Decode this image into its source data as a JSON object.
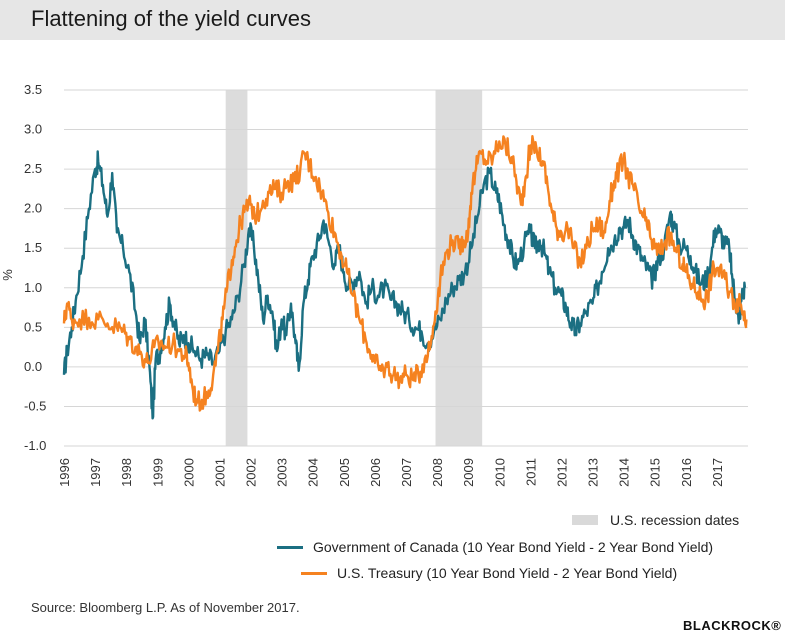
{
  "header": {
    "title": "Flattening of the yield curves"
  },
  "chart_data": {
    "type": "line",
    "ylabel": "%",
    "ylim": [
      -1.0,
      3.5
    ],
    "yticks": [
      "3.5",
      "3.0",
      "2.5",
      "2.0",
      "1.5",
      "1.0",
      "0.5",
      "0.0",
      "-0.5",
      "-1.0"
    ],
    "xlim": [
      1996.0,
      2018.0
    ],
    "xticks": [
      "1996",
      "1997",
      "1998",
      "1999",
      "2000",
      "2001",
      "2002",
      "2003",
      "2004",
      "2005",
      "2006",
      "2007",
      "2008",
      "2009",
      "2010",
      "2011",
      "2012",
      "2013",
      "2014",
      "2015",
      "2016",
      "2017"
    ],
    "grid": true,
    "recessions": [
      {
        "start": 2001.2,
        "end": 2001.9
      },
      {
        "start": 2007.95,
        "end": 2009.45
      }
    ],
    "series": [
      {
        "name": "Government of Canada (10 Year Bond Yield - 2 Year Bond Yield)",
        "color": "#1b6f82",
        "points": [
          [
            1996.0,
            -0.1
          ],
          [
            1996.1,
            0.2
          ],
          [
            1996.25,
            0.5
          ],
          [
            1996.4,
            0.9
          ],
          [
            1996.6,
            1.4
          ],
          [
            1996.8,
            2.0
          ],
          [
            1997.0,
            2.5
          ],
          [
            1997.1,
            2.6
          ],
          [
            1997.25,
            2.3
          ],
          [
            1997.4,
            1.9
          ],
          [
            1997.55,
            2.45
          ],
          [
            1997.7,
            1.7
          ],
          [
            1997.9,
            1.5
          ],
          [
            1998.1,
            1.2
          ],
          [
            1998.3,
            0.7
          ],
          [
            1998.45,
            0.3
          ],
          [
            1998.6,
            0.6
          ],
          [
            1998.75,
            0.0
          ],
          [
            1998.85,
            -0.65
          ],
          [
            1998.95,
            0.1
          ],
          [
            1999.1,
            0.2
          ],
          [
            1999.25,
            0.5
          ],
          [
            1999.4,
            0.8
          ],
          [
            1999.55,
            0.55
          ],
          [
            1999.7,
            0.3
          ],
          [
            1999.85,
            0.4
          ],
          [
            2000.0,
            0.3
          ],
          [
            2000.2,
            0.2
          ],
          [
            2000.4,
            0.1
          ],
          [
            2000.6,
            0.15
          ],
          [
            2000.8,
            0.05
          ],
          [
            2001.0,
            0.2
          ],
          [
            2001.2,
            0.45
          ],
          [
            2001.4,
            0.6
          ],
          [
            2001.6,
            0.9
          ],
          [
            2001.8,
            1.3
          ],
          [
            2001.95,
            1.75
          ],
          [
            2002.1,
            1.55
          ],
          [
            2002.25,
            1.1
          ],
          [
            2002.4,
            0.6
          ],
          [
            2002.55,
            0.9
          ],
          [
            2002.7,
            0.7
          ],
          [
            2002.85,
            0.2
          ],
          [
            2003.0,
            0.6
          ],
          [
            2003.15,
            0.4
          ],
          [
            2003.3,
            0.8
          ],
          [
            2003.45,
            0.3
          ],
          [
            2003.55,
            -0.05
          ],
          [
            2003.7,
            0.8
          ],
          [
            2003.85,
            1.1
          ],
          [
            2004.0,
            1.4
          ],
          [
            2004.2,
            1.6
          ],
          [
            2004.35,
            1.85
          ],
          [
            2004.5,
            1.6
          ],
          [
            2004.7,
            1.3
          ],
          [
            2004.85,
            1.5
          ],
          [
            2005.0,
            1.2
          ],
          [
            2005.15,
            1.0
          ],
          [
            2005.35,
            1.1
          ],
          [
            2005.5,
            1.2
          ],
          [
            2005.7,
            0.8
          ],
          [
            2005.9,
            1.0
          ],
          [
            2006.1,
            0.9
          ],
          [
            2006.3,
            1.0
          ],
          [
            2006.5,
            0.85
          ],
          [
            2006.7,
            0.8
          ],
          [
            2006.9,
            0.7
          ],
          [
            2007.1,
            0.6
          ],
          [
            2007.3,
            0.5
          ],
          [
            2007.5,
            0.45
          ],
          [
            2007.7,
            0.3
          ],
          [
            2007.9,
            0.45
          ],
          [
            2008.1,
            0.6
          ],
          [
            2008.3,
            0.85
          ],
          [
            2008.5,
            1.0
          ],
          [
            2008.7,
            1.1
          ],
          [
            2008.9,
            1.2
          ],
          [
            2009.1,
            1.5
          ],
          [
            2009.3,
            1.9
          ],
          [
            2009.5,
            2.3
          ],
          [
            2009.7,
            2.45
          ],
          [
            2009.9,
            2.2
          ],
          [
            2010.0,
            2.1
          ],
          [
            2010.15,
            1.8
          ],
          [
            2010.3,
            1.6
          ],
          [
            2010.45,
            1.35
          ],
          [
            2010.6,
            1.3
          ],
          [
            2010.8,
            1.55
          ],
          [
            2011.0,
            1.7
          ],
          [
            2011.15,
            1.5
          ],
          [
            2011.3,
            1.6
          ],
          [
            2011.45,
            1.45
          ],
          [
            2011.6,
            1.2
          ],
          [
            2011.8,
            1.0
          ],
          [
            2012.0,
            0.9
          ],
          [
            2012.15,
            0.75
          ],
          [
            2012.3,
            0.55
          ],
          [
            2012.45,
            0.45
          ],
          [
            2012.6,
            0.55
          ],
          [
            2012.8,
            0.7
          ],
          [
            2013.0,
            0.8
          ],
          [
            2013.15,
            1.0
          ],
          [
            2013.3,
            1.2
          ],
          [
            2013.5,
            1.5
          ],
          [
            2013.7,
            1.6
          ],
          [
            2013.85,
            1.75
          ],
          [
            2014.0,
            1.75
          ],
          [
            2014.15,
            1.85
          ],
          [
            2014.3,
            1.65
          ],
          [
            2014.45,
            1.5
          ],
          [
            2014.6,
            1.35
          ],
          [
            2014.75,
            1.25
          ],
          [
            2014.9,
            1.1
          ],
          [
            2015.0,
            1.2
          ],
          [
            2015.15,
            1.4
          ],
          [
            2015.3,
            1.5
          ],
          [
            2015.5,
            1.95
          ],
          [
            2015.6,
            1.8
          ],
          [
            2015.8,
            1.55
          ],
          [
            2016.0,
            1.5
          ],
          [
            2016.15,
            1.4
          ],
          [
            2016.3,
            1.2
          ],
          [
            2016.5,
            1.05
          ],
          [
            2016.65,
            1.1
          ],
          [
            2016.8,
            1.35
          ],
          [
            2016.95,
            1.75
          ],
          [
            2017.1,
            1.7
          ],
          [
            2017.25,
            1.55
          ],
          [
            2017.4,
            1.5
          ],
          [
            2017.5,
            1.1
          ],
          [
            2017.6,
            0.85
          ],
          [
            2017.7,
            0.55
          ],
          [
            2017.8,
            0.9
          ],
          [
            2017.9,
            1.0
          ]
        ]
      },
      {
        "name": "U.S. Treasury (10 Year Bond Yield - 2 Year Bond Yield)",
        "color": "#f58220",
        "points": [
          [
            1996.0,
            0.55
          ],
          [
            1996.1,
            0.8
          ],
          [
            1996.25,
            0.6
          ],
          [
            1996.5,
            0.6
          ],
          [
            1996.8,
            0.62
          ],
          [
            1997.1,
            0.6
          ],
          [
            1997.4,
            0.55
          ],
          [
            1997.7,
            0.5
          ],
          [
            1997.9,
            0.45
          ],
          [
            1998.1,
            0.35
          ],
          [
            1998.3,
            0.25
          ],
          [
            1998.5,
            0.15
          ],
          [
            1998.7,
            0.05
          ],
          [
            1998.9,
            0.25
          ],
          [
            1999.1,
            0.3
          ],
          [
            1999.3,
            0.25
          ],
          [
            1999.5,
            0.3
          ],
          [
            1999.7,
            0.2
          ],
          [
            1999.9,
            0.15
          ],
          [
            2000.0,
            0.05
          ],
          [
            2000.15,
            -0.3
          ],
          [
            2000.3,
            -0.45
          ],
          [
            2000.5,
            -0.4
          ],
          [
            2000.65,
            -0.3
          ],
          [
            2000.8,
            -0.1
          ],
          [
            2000.95,
            0.2
          ],
          [
            2001.1,
            0.6
          ],
          [
            2001.25,
            1.0
          ],
          [
            2001.4,
            1.35
          ],
          [
            2001.55,
            1.6
          ],
          [
            2001.7,
            1.85
          ],
          [
            2001.85,
            2.0
          ],
          [
            2002.0,
            2.05
          ],
          [
            2002.2,
            1.9
          ],
          [
            2002.4,
            2.1
          ],
          [
            2002.6,
            2.2
          ],
          [
            2002.8,
            2.25
          ],
          [
            2003.0,
            2.2
          ],
          [
            2003.2,
            2.35
          ],
          [
            2003.4,
            2.35
          ],
          [
            2003.6,
            2.5
          ],
          [
            2003.75,
            2.7
          ],
          [
            2003.9,
            2.55
          ],
          [
            2004.1,
            2.4
          ],
          [
            2004.3,
            2.2
          ],
          [
            2004.5,
            1.95
          ],
          [
            2004.7,
            1.7
          ],
          [
            2004.9,
            1.45
          ],
          [
            2005.1,
            1.2
          ],
          [
            2005.3,
            0.9
          ],
          [
            2005.5,
            0.6
          ],
          [
            2005.7,
            0.35
          ],
          [
            2005.9,
            0.15
          ],
          [
            2006.0,
            0.05
          ],
          [
            2006.2,
            -0.05
          ],
          [
            2006.4,
            0.0
          ],
          [
            2006.6,
            -0.1
          ],
          [
            2006.8,
            -0.15
          ],
          [
            2007.0,
            -0.1
          ],
          [
            2007.2,
            -0.15
          ],
          [
            2007.4,
            -0.1
          ],
          [
            2007.6,
            0.1
          ],
          [
            2007.8,
            0.3
          ],
          [
            2007.95,
            0.7
          ],
          [
            2008.1,
            1.1
          ],
          [
            2008.3,
            1.45
          ],
          [
            2008.5,
            1.6
          ],
          [
            2008.7,
            1.5
          ],
          [
            2008.85,
            1.6
          ],
          [
            2009.0,
            1.7
          ],
          [
            2009.1,
            2.2
          ],
          [
            2009.25,
            2.5
          ],
          [
            2009.4,
            2.7
          ],
          [
            2009.6,
            2.6
          ],
          [
            2009.8,
            2.65
          ],
          [
            2010.0,
            2.85
          ],
          [
            2010.2,
            2.8
          ],
          [
            2010.4,
            2.65
          ],
          [
            2010.55,
            2.35
          ],
          [
            2010.7,
            2.05
          ],
          [
            2010.85,
            2.4
          ],
          [
            2011.0,
            2.8
          ],
          [
            2011.2,
            2.75
          ],
          [
            2011.4,
            2.6
          ],
          [
            2011.55,
            2.3
          ],
          [
            2011.7,
            1.95
          ],
          [
            2011.85,
            1.75
          ],
          [
            2012.0,
            1.7
          ],
          [
            2012.2,
            1.75
          ],
          [
            2012.4,
            1.5
          ],
          [
            2012.6,
            1.3
          ],
          [
            2012.8,
            1.5
          ],
          [
            2013.0,
            1.75
          ],
          [
            2013.2,
            1.8
          ],
          [
            2013.4,
            1.7
          ],
          [
            2013.55,
            2.1
          ],
          [
            2013.7,
            2.35
          ],
          [
            2013.85,
            2.5
          ],
          [
            2014.0,
            2.6
          ],
          [
            2014.15,
            2.4
          ],
          [
            2014.3,
            2.3
          ],
          [
            2014.5,
            2.0
          ],
          [
            2014.7,
            1.85
          ],
          [
            2014.85,
            1.65
          ],
          [
            2015.0,
            1.5
          ],
          [
            2015.15,
            1.45
          ],
          [
            2015.35,
            1.6
          ],
          [
            2015.5,
            1.65
          ],
          [
            2015.7,
            1.45
          ],
          [
            2015.9,
            1.3
          ],
          [
            2016.0,
            1.2
          ],
          [
            2016.2,
            1.05
          ],
          [
            2016.4,
            0.95
          ],
          [
            2016.55,
            0.85
          ],
          [
            2016.7,
            0.9
          ],
          [
            2016.85,
            1.2
          ],
          [
            2017.0,
            1.25
          ],
          [
            2017.2,
            1.15
          ],
          [
            2017.4,
            0.95
          ],
          [
            2017.55,
            0.85
          ],
          [
            2017.7,
            0.8
          ],
          [
            2017.85,
            0.7
          ],
          [
            2017.95,
            0.6
          ]
        ]
      }
    ],
    "legend": [
      {
        "label": "U.S. recession dates",
        "kind": "box",
        "color": "#d9d9d9"
      },
      {
        "label": "Government of Canada (10 Year Bond Yield - 2 Year Bond Yield)",
        "kind": "line",
        "color": "#1b6f82"
      },
      {
        "label": "U.S. Treasury (10 Year Bond Yield - 2 Year Bond Yield)",
        "kind": "line",
        "color": "#f58220"
      }
    ],
    "legend_position": "bottom-right"
  },
  "footer": {
    "source": "Source: Bloomberg L.P. As of November 2017.",
    "logo": "BLACKROCK®"
  }
}
